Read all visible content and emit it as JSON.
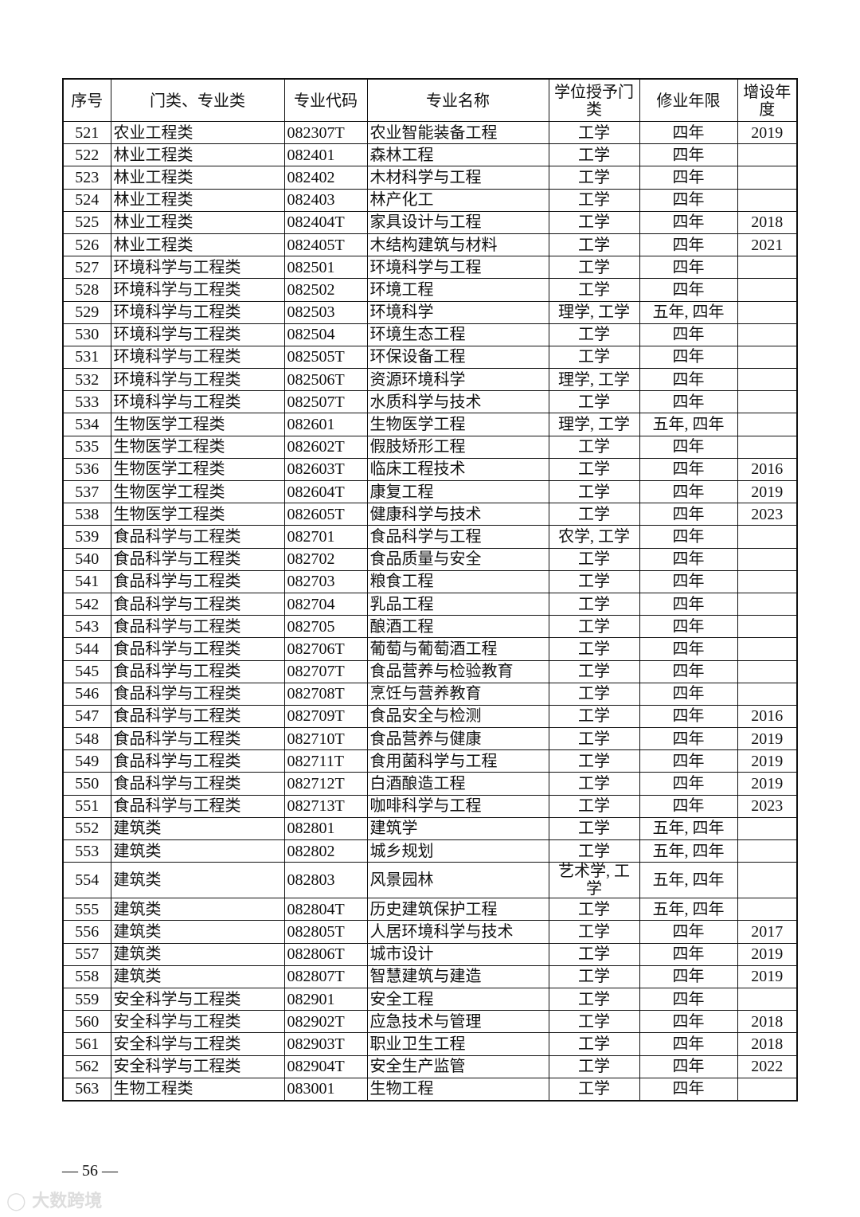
{
  "table": {
    "headers": [
      "序号",
      "门类、专业类",
      "专业代码",
      "专业名称",
      "学位授予门类",
      "修业年限",
      "增设年度"
    ],
    "rows": [
      [
        "521",
        "农业工程类",
        "082307T",
        "农业智能装备工程",
        "工学",
        "四年",
        "2019"
      ],
      [
        "522",
        "林业工程类",
        "082401",
        "森林工程",
        "工学",
        "四年",
        ""
      ],
      [
        "523",
        "林业工程类",
        "082402",
        "木材科学与工程",
        "工学",
        "四年",
        ""
      ],
      [
        "524",
        "林业工程类",
        "082403",
        "林产化工",
        "工学",
        "四年",
        ""
      ],
      [
        "525",
        "林业工程类",
        "082404T",
        "家具设计与工程",
        "工学",
        "四年",
        "2018"
      ],
      [
        "526",
        "林业工程类",
        "082405T",
        "木结构建筑与材料",
        "工学",
        "四年",
        "2021"
      ],
      [
        "527",
        "环境科学与工程类",
        "082501",
        "环境科学与工程",
        "工学",
        "四年",
        ""
      ],
      [
        "528",
        "环境科学与工程类",
        "082502",
        "环境工程",
        "工学",
        "四年",
        ""
      ],
      [
        "529",
        "环境科学与工程类",
        "082503",
        "环境科学",
        "理学, 工学",
        "五年, 四年",
        ""
      ],
      [
        "530",
        "环境科学与工程类",
        "082504",
        "环境生态工程",
        "工学",
        "四年",
        ""
      ],
      [
        "531",
        "环境科学与工程类",
        "082505T",
        "环保设备工程",
        "工学",
        "四年",
        ""
      ],
      [
        "532",
        "环境科学与工程类",
        "082506T",
        "资源环境科学",
        "理学, 工学",
        "四年",
        ""
      ],
      [
        "533",
        "环境科学与工程类",
        "082507T",
        "水质科学与技术",
        "工学",
        "四年",
        ""
      ],
      [
        "534",
        "生物医学工程类",
        "082601",
        "生物医学工程",
        "理学, 工学",
        "五年, 四年",
        ""
      ],
      [
        "535",
        "生物医学工程类",
        "082602T",
        "假肢矫形工程",
        "工学",
        "四年",
        ""
      ],
      [
        "536",
        "生物医学工程类",
        "082603T",
        "临床工程技术",
        "工学",
        "四年",
        "2016"
      ],
      [
        "537",
        "生物医学工程类",
        "082604T",
        "康复工程",
        "工学",
        "四年",
        "2019"
      ],
      [
        "538",
        "生物医学工程类",
        "082605T",
        "健康科学与技术",
        "工学",
        "四年",
        "2023"
      ],
      [
        "539",
        "食品科学与工程类",
        "082701",
        "食品科学与工程",
        "农学, 工学",
        "四年",
        ""
      ],
      [
        "540",
        "食品科学与工程类",
        "082702",
        "食品质量与安全",
        "工学",
        "四年",
        ""
      ],
      [
        "541",
        "食品科学与工程类",
        "082703",
        "粮食工程",
        "工学",
        "四年",
        ""
      ],
      [
        "542",
        "食品科学与工程类",
        "082704",
        "乳品工程",
        "工学",
        "四年",
        ""
      ],
      [
        "543",
        "食品科学与工程类",
        "082705",
        "酿酒工程",
        "工学",
        "四年",
        ""
      ],
      [
        "544",
        "食品科学与工程类",
        "082706T",
        "葡萄与葡萄酒工程",
        "工学",
        "四年",
        ""
      ],
      [
        "545",
        "食品科学与工程类",
        "082707T",
        "食品营养与检验教育",
        "工学",
        "四年",
        ""
      ],
      [
        "546",
        "食品科学与工程类",
        "082708T",
        "烹饪与营养教育",
        "工学",
        "四年",
        ""
      ],
      [
        "547",
        "食品科学与工程类",
        "082709T",
        "食品安全与检测",
        "工学",
        "四年",
        "2016"
      ],
      [
        "548",
        "食品科学与工程类",
        "082710T",
        "食品营养与健康",
        "工学",
        "四年",
        "2019"
      ],
      [
        "549",
        "食品科学与工程类",
        "082711T",
        "食用菌科学与工程",
        "工学",
        "四年",
        "2019"
      ],
      [
        "550",
        "食品科学与工程类",
        "082712T",
        "白酒酿造工程",
        "工学",
        "四年",
        "2019"
      ],
      [
        "551",
        "食品科学与工程类",
        "082713T",
        "咖啡科学与工程",
        "工学",
        "四年",
        "2023"
      ],
      [
        "552",
        "建筑类",
        "082801",
        "建筑学",
        "工学",
        "五年, 四年",
        ""
      ],
      [
        "553",
        "建筑类",
        "082802",
        "城乡规划",
        "工学",
        "五年, 四年",
        ""
      ],
      [
        "554",
        "建筑类",
        "082803",
        "风景园林",
        "艺术学, 工学",
        "五年, 四年",
        ""
      ],
      [
        "555",
        "建筑类",
        "082804T",
        "历史建筑保护工程",
        "工学",
        "五年, 四年",
        ""
      ],
      [
        "556",
        "建筑类",
        "082805T",
        "人居环境科学与技术",
        "工学",
        "四年",
        "2017"
      ],
      [
        "557",
        "建筑类",
        "082806T",
        "城市设计",
        "工学",
        "四年",
        "2019"
      ],
      [
        "558",
        "建筑类",
        "082807T",
        "智慧建筑与建造",
        "工学",
        "四年",
        "2019"
      ],
      [
        "559",
        "安全科学与工程类",
        "082901",
        "安全工程",
        "工学",
        "四年",
        ""
      ],
      [
        "560",
        "安全科学与工程类",
        "082902T",
        "应急技术与管理",
        "工学",
        "四年",
        "2018"
      ],
      [
        "561",
        "安全科学与工程类",
        "082903T",
        "职业卫生工程",
        "工学",
        "四年",
        "2018"
      ],
      [
        "562",
        "安全科学与工程类",
        "082904T",
        "安全生产监管",
        "工学",
        "四年",
        "2022"
      ],
      [
        "563",
        "生物工程类",
        "083001",
        "生物工程",
        "工学",
        "四年",
        ""
      ]
    ]
  },
  "footer": {
    "page_number": "— 56 —"
  },
  "watermark": "大数跨境"
}
